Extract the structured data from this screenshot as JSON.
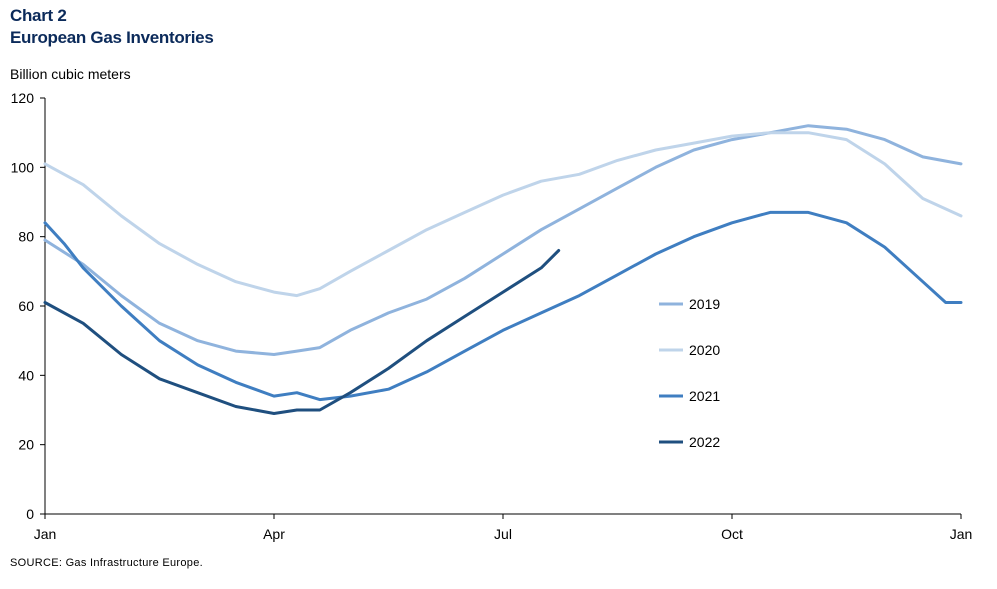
{
  "header": {
    "chart_number": "Chart 2",
    "title": "European Gas Inventories"
  },
  "source": "SOURCE: Gas Infrastructure Europe.",
  "chart_data": {
    "type": "line",
    "title": "European Gas Inventories",
    "ylabel": "Billion cubic meters",
    "xlabel": "",
    "ylim": [
      0,
      120
    ],
    "yticks": [
      0,
      20,
      40,
      60,
      80,
      100,
      120
    ],
    "xlim": [
      0,
      12
    ],
    "xticks": [
      {
        "value": 0,
        "label": "Jan"
      },
      {
        "value": 3,
        "label": "Apr"
      },
      {
        "value": 6,
        "label": "Jul"
      },
      {
        "value": 9,
        "label": "Oct"
      },
      {
        "value": 12,
        "label": "Jan"
      }
    ],
    "grid": false,
    "legend_position": "right",
    "series": [
      {
        "name": "2019",
        "color": "#8fb3dd",
        "x": [
          0,
          0.5,
          1,
          1.5,
          2,
          2.5,
          3,
          3.3,
          3.6,
          4,
          4.5,
          5,
          5.5,
          6,
          6.5,
          7,
          7.5,
          8,
          8.5,
          9,
          9.5,
          10,
          10.5,
          11,
          11.5,
          12
        ],
        "y": [
          79,
          72,
          63,
          55,
          50,
          47,
          46,
          47,
          48,
          53,
          58,
          62,
          68,
          75,
          82,
          88,
          94,
          100,
          105,
          108,
          110,
          112,
          111,
          108,
          103,
          101
        ]
      },
      {
        "name": "2020",
        "color": "#bfd4ea",
        "x": [
          0,
          0.5,
          1,
          1.5,
          2,
          2.5,
          3,
          3.3,
          3.6,
          4,
          4.5,
          5,
          5.5,
          6,
          6.5,
          7,
          7.5,
          8,
          8.5,
          9,
          9.5,
          10,
          10.5,
          11,
          11.5,
          12
        ],
        "y": [
          101,
          95,
          86,
          78,
          72,
          67,
          64,
          63,
          65,
          70,
          76,
          82,
          87,
          92,
          96,
          98,
          102,
          105,
          107,
          109,
          110,
          110,
          108,
          101,
          91,
          86
        ]
      },
      {
        "name": "2021",
        "color": "#3f7ec1",
        "x": [
          0,
          0.25,
          0.5,
          1,
          1.5,
          2,
          2.5,
          3,
          3.3,
          3.6,
          4,
          4.5,
          5,
          5.5,
          6,
          6.5,
          7,
          7.5,
          8,
          8.5,
          9,
          9.5,
          10,
          10.5,
          11,
          11.5,
          11.8,
          12
        ],
        "y": [
          84,
          78,
          71,
          60,
          50,
          43,
          38,
          34,
          35,
          33,
          34,
          36,
          41,
          47,
          53,
          58,
          63,
          69,
          75,
          80,
          84,
          87,
          87,
          84,
          77,
          67,
          61,
          61
        ]
      },
      {
        "name": "2022",
        "color": "#1f4f7f",
        "x": [
          0,
          0.5,
          1,
          1.5,
          2,
          2.5,
          3,
          3.3,
          3.6,
          4,
          4.5,
          5,
          5.5,
          6,
          6.5,
          6.73
        ],
        "y": [
          61,
          55,
          46,
          39,
          35,
          31,
          29,
          30,
          30,
          35,
          42,
          50,
          57,
          64,
          71,
          76
        ]
      }
    ]
  }
}
